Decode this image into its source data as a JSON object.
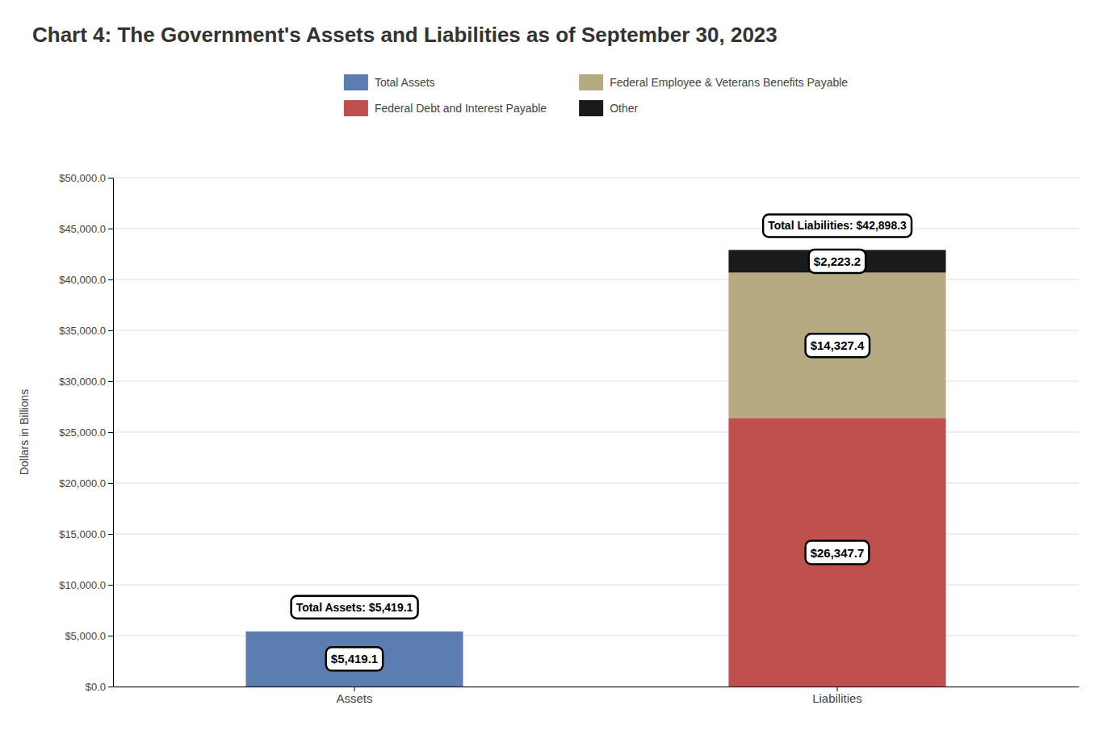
{
  "chart_data": {
    "type": "bar",
    "title": "Chart 4: The Government's Assets and Liabilities as of September 30, 2023",
    "categories": [
      "Assets",
      "Liabilities"
    ],
    "stacked": true,
    "series": [
      {
        "name": "Total Assets",
        "color": "#5b7db1",
        "values": [
          5419.1,
          null
        ],
        "value_labels": [
          "$5,419.1",
          null
        ]
      },
      {
        "name": "Federal Debt and Interest Payable",
        "color": "#c0504d",
        "values": [
          null,
          26347.7
        ],
        "value_labels": [
          null,
          "$26,347.7"
        ]
      },
      {
        "name": "Federal Employee & Veterans Benefits Payable",
        "color": "#b5aa82",
        "values": [
          null,
          14327.4
        ],
        "value_labels": [
          null,
          "$14,327.4"
        ]
      },
      {
        "name": "Other",
        "color": "#1a1a1a",
        "values": [
          null,
          2223.2
        ],
        "value_labels": [
          null,
          "$2,223.2"
        ]
      }
    ],
    "annotations": [
      {
        "text": "Total Assets: $5,419.1",
        "x": "Assets",
        "y": 5419.1
      },
      {
        "text": "Total Liabilities: $42,898.3",
        "x": "Liabilities",
        "y": 42898.3
      }
    ],
    "ylabel": "Dollars in Billions",
    "ylim": [
      0,
      50000
    ],
    "yticks": [
      {
        "value": 0,
        "label": "$0.0"
      },
      {
        "value": 5000,
        "label": "$5,000.0"
      },
      {
        "value": 10000,
        "label": "$10,000.0"
      },
      {
        "value": 15000,
        "label": "$15,000.0"
      },
      {
        "value": 20000,
        "label": "$20,000.0"
      },
      {
        "value": 25000,
        "label": "$25,000.0"
      },
      {
        "value": 30000,
        "label": "$30,000.0"
      },
      {
        "value": 35000,
        "label": "$35,000.0"
      },
      {
        "value": 40000,
        "label": "$40,000.0"
      },
      {
        "value": 45000,
        "label": "$45,000.0"
      },
      {
        "value": 50000,
        "label": "$50,000.0"
      }
    ],
    "grid": true,
    "legend": "top",
    "data_labels": true
  }
}
